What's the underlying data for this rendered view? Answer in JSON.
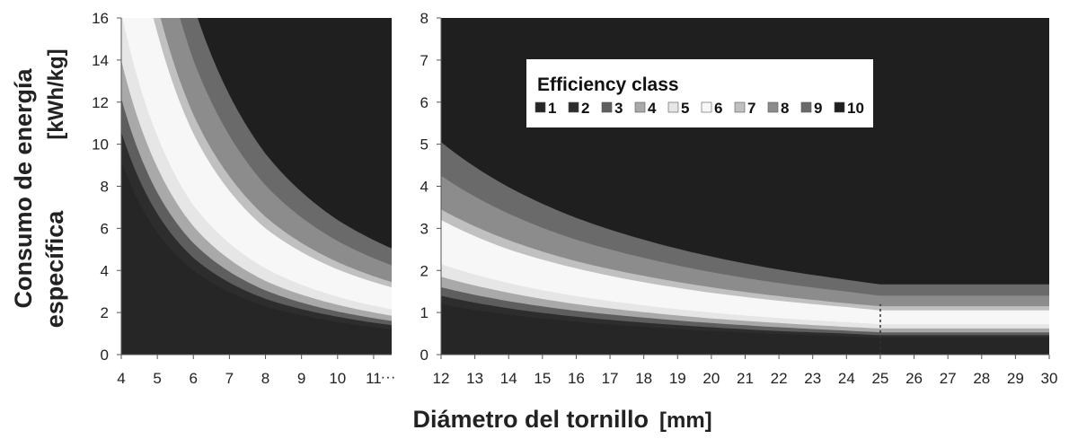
{
  "chart_data": {
    "type": "area",
    "xlabel": "Diámetro del tornillo",
    "xunit": "[mm]",
    "ylabel_line1": "Consumo de energía",
    "ylabel_line2": "específica",
    "yunit": "[kWh/kg]",
    "legend_title": "Efficiency class",
    "legend_position": "top-center of right panel",
    "class_names": [
      "1",
      "2",
      "3",
      "4",
      "5",
      "6",
      "7",
      "8",
      "9",
      "10"
    ],
    "class_colors": [
      "#262626",
      "#2d2d2d",
      "#5e5e5e",
      "#a9a9a9",
      "#e6e6e6",
      "#f7f7f7",
      "#c0c0c0",
      "#8c8c8c",
      "#6a6a6a",
      "#1f1f1f"
    ],
    "boundary_x": [
      4,
      5,
      6,
      8,
      10,
      11.5,
      12,
      14,
      16,
      18,
      20,
      22,
      24,
      25,
      30
    ],
    "boundaries": [
      {
        "upper_of_class": "1",
        "y": [
          9.2,
          5.8,
          4.0,
          2.3,
          1.55,
          1.2,
          1.2,
          0.95,
          0.78,
          0.66,
          0.56,
          0.49,
          0.43,
          0.4,
          0.4
        ]
      },
      {
        "upper_of_class": "2",
        "y": [
          10.6,
          6.7,
          4.6,
          2.65,
          1.8,
          1.4,
          1.4,
          1.1,
          0.9,
          0.76,
          0.65,
          0.56,
          0.5,
          0.46,
          0.46
        ]
      },
      {
        "upper_of_class": "3",
        "y": [
          12.2,
          7.7,
          5.3,
          3.05,
          2.05,
          1.6,
          1.6,
          1.27,
          1.04,
          0.88,
          0.75,
          0.65,
          0.57,
          0.53,
          0.53
        ]
      },
      {
        "upper_of_class": "4",
        "y": [
          14.0,
          8.9,
          6.1,
          3.5,
          2.37,
          1.85,
          1.85,
          1.47,
          1.2,
          1.01,
          0.86,
          0.75,
          0.66,
          0.62,
          0.62
        ]
      },
      {
        "upper_of_class": "5",
        "y": [
          16.3,
          10.4,
          7.1,
          4.1,
          2.75,
          2.15,
          2.15,
          1.7,
          1.39,
          1.17,
          1.0,
          0.87,
          0.77,
          0.72,
          0.72
        ]
      },
      {
        "upper_of_class": "6",
        "y": [
          24.0,
          15.3,
          10.5,
          6.0,
          4.05,
          3.2,
          3.2,
          2.5,
          2.05,
          1.72,
          1.47,
          1.28,
          1.13,
          1.05,
          1.05
        ]
      },
      {
        "upper_of_class": "7",
        "y": [
          26.0,
          16.6,
          11.4,
          6.55,
          4.4,
          3.45,
          3.45,
          2.72,
          2.22,
          1.87,
          1.6,
          1.39,
          1.22,
          1.15,
          1.15
        ]
      },
      {
        "upper_of_class": "8",
        "y": [
          32.0,
          20.5,
          14.0,
          8.05,
          5.4,
          4.25,
          4.25,
          3.35,
          2.73,
          2.3,
          1.96,
          1.7,
          1.5,
          1.4,
          1.4
        ]
      },
      {
        "upper_of_class": "9",
        "y": [
          38.0,
          24.3,
          16.6,
          9.55,
          6.4,
          5.05,
          5.05,
          3.98,
          3.25,
          2.73,
          2.33,
          2.02,
          1.78,
          1.67,
          1.67
        ]
      }
    ],
    "panels": [
      {
        "xlim": [
          4,
          11.5
        ],
        "ylim": [
          0,
          16
        ],
        "xticks": [
          4,
          5,
          6,
          7,
          8,
          9,
          10,
          11
        ],
        "xtick_labels": [
          "4",
          "5",
          "6",
          "7",
          "8",
          "9",
          "10",
          "11"
        ],
        "yticks": [
          0,
          2,
          4,
          6,
          8,
          10,
          12,
          14,
          16
        ],
        "ytick_labels": [
          "0",
          "2",
          "4",
          "6",
          "8",
          "10",
          "12",
          "14",
          "16"
        ],
        "ellipsis": "···"
      },
      {
        "xlim": [
          12,
          30
        ],
        "ylim": [
          0,
          8
        ],
        "xticks": [
          12,
          13,
          14,
          15,
          16,
          17,
          18,
          19,
          20,
          21,
          22,
          23,
          24,
          25,
          26,
          27,
          28,
          29,
          30
        ],
        "xtick_labels": [
          "12",
          "13",
          "14",
          "15",
          "16",
          "17",
          "18",
          "19",
          "20",
          "21",
          "22",
          "23",
          "24",
          "25",
          "26",
          "27",
          "28",
          "29",
          "30"
        ],
        "yticks": [
          0,
          1,
          2,
          3,
          4,
          5,
          6,
          7,
          8
        ],
        "ytick_labels": [
          "0",
          "1",
          "2",
          "3",
          "4",
          "5",
          "6",
          "7",
          "8"
        ],
        "marker_x": 25
      }
    ]
  }
}
